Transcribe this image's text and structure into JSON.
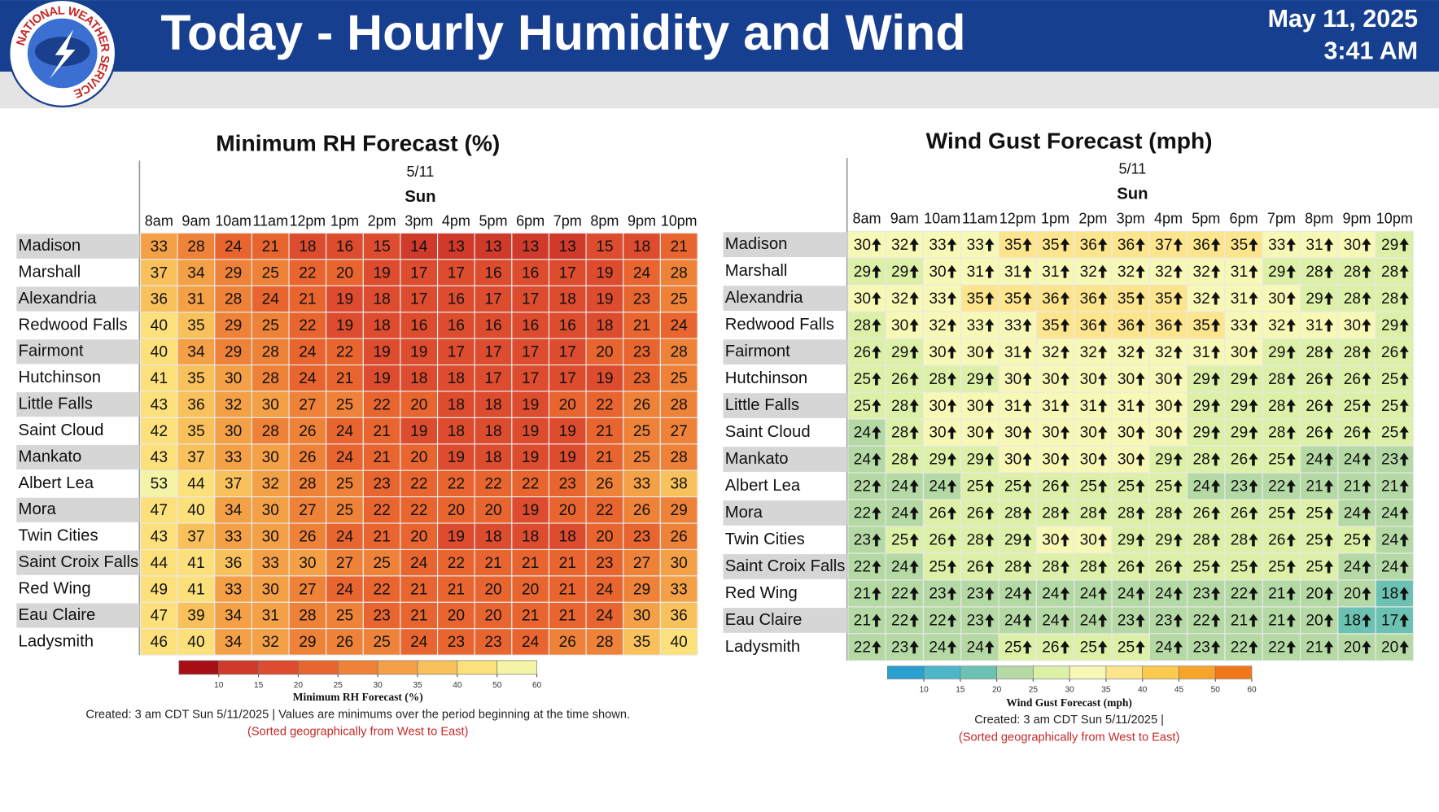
{
  "header": {
    "title": "Today - Hourly Humidity and Wind",
    "date": "May 11, 2025",
    "time": "3:41 AM",
    "logo_text": "NATIONAL WEATHER SERVICE"
  },
  "chart_data": [
    {
      "type": "heatmap",
      "title": "Minimum RH Forecast (%)",
      "date_label": "5/11",
      "day_label": "Sun",
      "x": [
        "8am",
        "9am",
        "10am",
        "11am",
        "12pm",
        "1pm",
        "2pm",
        "3pm",
        "4pm",
        "5pm",
        "6pm",
        "7pm",
        "8pm",
        "9pm",
        "10pm"
      ],
      "y": [
        "Madison",
        "Marshall",
        "Alexandria",
        "Redwood Falls",
        "Fairmont",
        "Hutchinson",
        "Little Falls",
        "Saint Cloud",
        "Mankato",
        "Albert Lea",
        "Mora",
        "Twin Cities",
        "Saint Croix Falls",
        "Red Wing",
        "Eau Claire",
        "Ladysmith"
      ],
      "values": [
        [
          33,
          28,
          24,
          21,
          18,
          16,
          15,
          14,
          13,
          13,
          13,
          13,
          15,
          18,
          21
        ],
        [
          37,
          34,
          29,
          25,
          22,
          20,
          19,
          17,
          17,
          16,
          16,
          17,
          19,
          24,
          28
        ],
        [
          36,
          31,
          28,
          24,
          21,
          19,
          18,
          17,
          16,
          17,
          17,
          18,
          19,
          23,
          25
        ],
        [
          40,
          35,
          29,
          25,
          22,
          19,
          18,
          16,
          16,
          16,
          16,
          16,
          18,
          21,
          24
        ],
        [
          40,
          34,
          29,
          28,
          24,
          22,
          19,
          19,
          17,
          17,
          17,
          17,
          20,
          23,
          28
        ],
        [
          41,
          35,
          30,
          28,
          24,
          21,
          19,
          18,
          18,
          17,
          17,
          17,
          19,
          23,
          25
        ],
        [
          43,
          36,
          32,
          30,
          27,
          25,
          22,
          20,
          18,
          18,
          19,
          20,
          22,
          26,
          28
        ],
        [
          42,
          35,
          30,
          28,
          26,
          24,
          21,
          19,
          18,
          18,
          19,
          19,
          21,
          25,
          27
        ],
        [
          43,
          37,
          33,
          30,
          26,
          24,
          21,
          20,
          19,
          18,
          19,
          19,
          21,
          25,
          28
        ],
        [
          53,
          44,
          37,
          32,
          28,
          25,
          23,
          22,
          22,
          22,
          22,
          23,
          26,
          33,
          38
        ],
        [
          47,
          40,
          34,
          30,
          27,
          25,
          22,
          22,
          20,
          20,
          19,
          20,
          22,
          26,
          29
        ],
        [
          43,
          37,
          33,
          30,
          26,
          24,
          21,
          20,
          19,
          18,
          18,
          18,
          20,
          23,
          26
        ],
        [
          44,
          41,
          36,
          33,
          30,
          27,
          25,
          24,
          22,
          21,
          21,
          21,
          23,
          27,
          30
        ],
        [
          49,
          41,
          33,
          30,
          27,
          24,
          22,
          21,
          21,
          20,
          20,
          21,
          24,
          29,
          33
        ],
        [
          47,
          39,
          34,
          31,
          28,
          25,
          23,
          21,
          20,
          20,
          21,
          21,
          24,
          30,
          36
        ],
        [
          46,
          40,
          34,
          32,
          29,
          26,
          25,
          24,
          23,
          23,
          24,
          26,
          28,
          35,
          40
        ]
      ],
      "colorbar": {
        "label": "Minimum RH Forecast (%)",
        "ticks": [
          10,
          15,
          20,
          25,
          30,
          35,
          40,
          50,
          60
        ],
        "colors": [
          "#a50f15",
          "#cf3a2a",
          "#dd4c2e",
          "#e8652f",
          "#ef8239",
          "#f4a047",
          "#f8c15b",
          "#fce07c",
          "#f4f4a6"
        ]
      },
      "note": "Created: 3 am CDT Sun 5/11/2025  |  Values are minimums over the period beginning at the time shown.",
      "sort_note": "(Sorted geographically from West to East)"
    },
    {
      "type": "heatmap",
      "title": "Wind Gust Forecast (mph)",
      "date_label": "5/11",
      "day_label": "Sun",
      "x": [
        "8am",
        "9am",
        "10am",
        "11am",
        "12pm",
        "1pm",
        "2pm",
        "3pm",
        "4pm",
        "5pm",
        "6pm",
        "7pm",
        "8pm",
        "9pm",
        "10pm"
      ],
      "y": [
        "Madison",
        "Marshall",
        "Alexandria",
        "Redwood Falls",
        "Fairmont",
        "Hutchinson",
        "Little Falls",
        "Saint Cloud",
        "Mankato",
        "Albert Lea",
        "Mora",
        "Twin Cities",
        "Saint Croix Falls",
        "Red Wing",
        "Eau Claire",
        "Ladysmith"
      ],
      "values": [
        [
          30,
          32,
          33,
          33,
          35,
          35,
          36,
          36,
          37,
          36,
          35,
          33,
          31,
          30,
          29
        ],
        [
          29,
          29,
          30,
          31,
          31,
          31,
          32,
          32,
          32,
          32,
          31,
          29,
          28,
          28,
          28
        ],
        [
          30,
          32,
          33,
          35,
          35,
          36,
          36,
          35,
          35,
          32,
          31,
          30,
          29,
          28,
          28
        ],
        [
          28,
          30,
          32,
          33,
          33,
          35,
          36,
          36,
          36,
          35,
          33,
          32,
          31,
          30,
          29
        ],
        [
          26,
          29,
          30,
          30,
          31,
          32,
          32,
          32,
          32,
          31,
          30,
          29,
          28,
          28,
          26
        ],
        [
          25,
          26,
          28,
          29,
          30,
          30,
          30,
          30,
          30,
          29,
          29,
          28,
          26,
          26,
          25
        ],
        [
          25,
          28,
          30,
          30,
          31,
          31,
          31,
          31,
          30,
          29,
          29,
          28,
          26,
          25,
          25
        ],
        [
          24,
          28,
          30,
          30,
          30,
          30,
          30,
          30,
          30,
          29,
          29,
          28,
          26,
          26,
          25
        ],
        [
          24,
          28,
          29,
          29,
          30,
          30,
          30,
          30,
          29,
          28,
          26,
          25,
          24,
          24,
          23
        ],
        [
          22,
          24,
          24,
          25,
          25,
          26,
          25,
          25,
          25,
          24,
          23,
          22,
          21,
          21,
          21
        ],
        [
          22,
          24,
          26,
          26,
          28,
          28,
          28,
          28,
          28,
          26,
          26,
          25,
          25,
          24,
          24
        ],
        [
          23,
          25,
          26,
          28,
          29,
          30,
          30,
          29,
          29,
          28,
          28,
          26,
          25,
          25,
          24
        ],
        [
          22,
          24,
          25,
          26,
          28,
          28,
          28,
          26,
          26,
          25,
          25,
          25,
          25,
          24,
          24
        ],
        [
          21,
          22,
          23,
          23,
          24,
          24,
          24,
          24,
          24,
          23,
          22,
          21,
          20,
          20,
          18
        ],
        [
          21,
          22,
          22,
          23,
          24,
          24,
          24,
          23,
          23,
          22,
          21,
          21,
          20,
          18,
          17
        ],
        [
          22,
          23,
          24,
          24,
          25,
          26,
          25,
          25,
          24,
          23,
          22,
          22,
          21,
          20,
          20
        ]
      ],
      "colorbar": {
        "label": "Wind Gust Forecast (mph)",
        "ticks": [
          10,
          15,
          20,
          25,
          30,
          35,
          40,
          45,
          50,
          60
        ],
        "colors": [
          "#2a9fd0",
          "#4db6c9",
          "#6cc2b2",
          "#b5d9a4",
          "#ddf0a8",
          "#f8f8b6",
          "#fce58d",
          "#fbca4f",
          "#f8a428",
          "#f4761a"
        ]
      },
      "note": "Created: 3 am CDT Sun 5/11/2025  |",
      "sort_note": "(Sorted geographically from West to East)"
    }
  ]
}
